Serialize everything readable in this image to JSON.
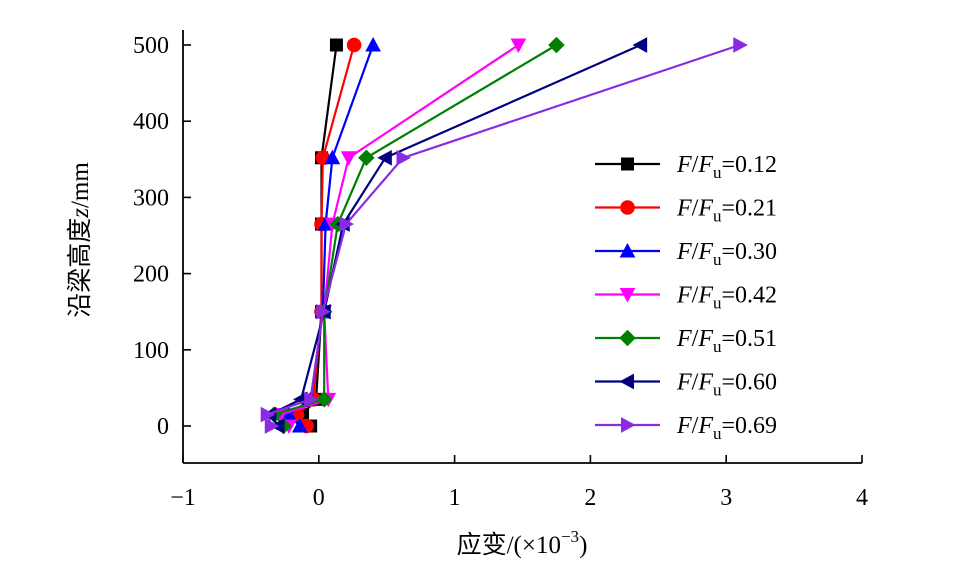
{
  "chart_data": {
    "type": "line",
    "xlabel": "应变/(×10",
    "xlabel_exponent": "−3",
    "xlabel_close": ")",
    "ylabel_prefix": "沿梁高度",
    "ylabel_var": "z",
    "ylabel_unit": "/mm",
    "xlim": [
      -1,
      4
    ],
    "ylim": [
      -45,
      520
    ],
    "xticks": [
      -1,
      0,
      1,
      2,
      3,
      4
    ],
    "xtick_labels": [
      "−1",
      "0",
      "1",
      "2",
      "3",
      "4"
    ],
    "yticks": [
      0,
      100,
      200,
      300,
      400,
      500
    ],
    "ytick_labels": [
      "0",
      "100",
      "200",
      "300",
      "400",
      "500"
    ],
    "grid": false,
    "legend_position": "right",
    "y": [
      0,
      15,
      35,
      150,
      265,
      352,
      500
    ],
    "series": [
      {
        "label_a": "F",
        "label_b": "F",
        "label_sub": "u",
        "label_value": "=0.12",
        "color": "#000000",
        "marker": "square",
        "x": [
          -0.06,
          -0.12,
          -0.02,
          0.02,
          0.02,
          0.02,
          0.13
        ]
      },
      {
        "label_a": "F",
        "label_b": "F",
        "label_sub": "u",
        "label_value": "=0.21",
        "color": "#ff0000",
        "marker": "circle",
        "x": [
          -0.09,
          -0.16,
          -0.04,
          0.02,
          0.02,
          0.03,
          0.26
        ]
      },
      {
        "label_a": "F",
        "label_b": "F",
        "label_sub": "u",
        "label_value": "=0.30",
        "color": "#0000ff",
        "marker": "triangle-up",
        "x": [
          -0.14,
          -0.22,
          -0.06,
          0.03,
          0.05,
          0.1,
          0.4
        ]
      },
      {
        "label_a": "F",
        "label_b": "F",
        "label_sub": "u",
        "label_value": "=0.42",
        "color": "#ff00ff",
        "marker": "triangle-down",
        "x": [
          -0.22,
          -0.28,
          0.07,
          0.04,
          0.1,
          0.22,
          1.47
        ]
      },
      {
        "label_a": "F",
        "label_b": "F",
        "label_sub": "u",
        "label_value": "=0.51",
        "color": "#008000",
        "marker": "diamond",
        "x": [
          -0.26,
          -0.33,
          0.04,
          0.04,
          0.14,
          0.35,
          1.75
        ]
      },
      {
        "label_a": "F",
        "label_b": "F",
        "label_sub": "u",
        "label_value": "=0.60",
        "color": "#000080",
        "marker": "triangle-left",
        "x": [
          -0.3,
          -0.36,
          -0.13,
          0.04,
          0.18,
          0.49,
          2.37
        ]
      },
      {
        "label_a": "F",
        "label_b": "F",
        "label_sub": "u",
        "label_value": "=0.69",
        "color": "#8a2be2",
        "marker": "triangle-right",
        "x": [
          -0.35,
          -0.38,
          -0.06,
          0.03,
          0.2,
          0.62,
          3.1
        ]
      }
    ]
  }
}
